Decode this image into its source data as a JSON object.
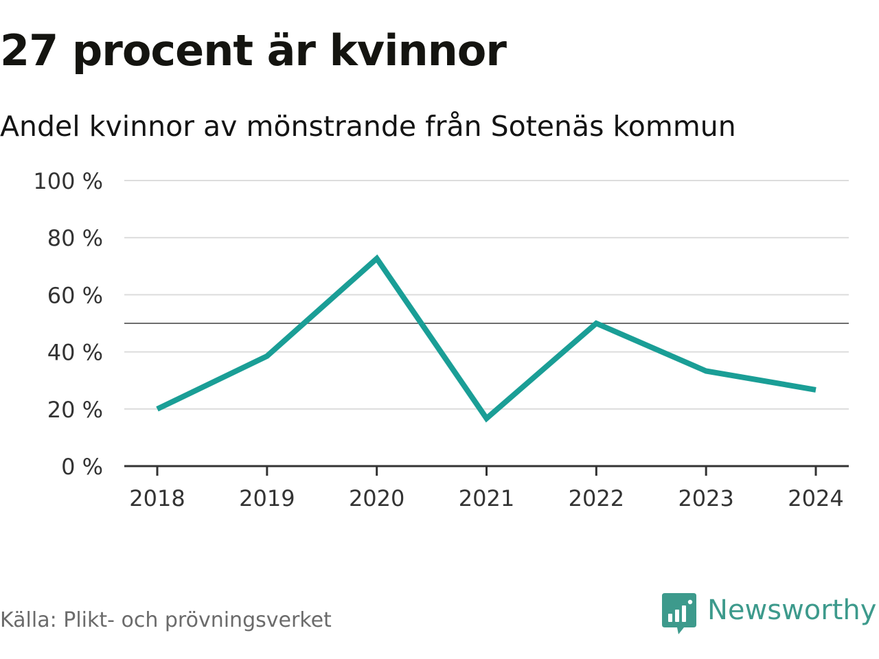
{
  "title": "27 procent är kvinnor",
  "subtitle": "Andel kvinnor av mönstrande från Sotenäs kommun",
  "source": "Källa: Plikt- och prövningsverket",
  "brand": {
    "name": "Newsworthy",
    "logo_icon": "newsworthy-logo-icon",
    "color": "#3d9a8c"
  },
  "chart_data": {
    "type": "line",
    "x": [
      "2018",
      "2019",
      "2020",
      "2021",
      "2022",
      "2023",
      "2024"
    ],
    "series": [
      {
        "values": [
          20,
          38.5,
          72.7,
          16.7,
          50,
          33.3,
          26.7
        ],
        "color": "#1a9e96"
      }
    ],
    "ylim": [
      0,
      100
    ],
    "yticks": [
      0,
      20,
      40,
      60,
      80,
      100
    ],
    "ytick_labels": [
      "0 %",
      "20 %",
      "40 %",
      "60 %",
      "80 %",
      "100 %"
    ],
    "reference_line": 50,
    "grid": true,
    "xlabel": "",
    "ylabel": ""
  }
}
